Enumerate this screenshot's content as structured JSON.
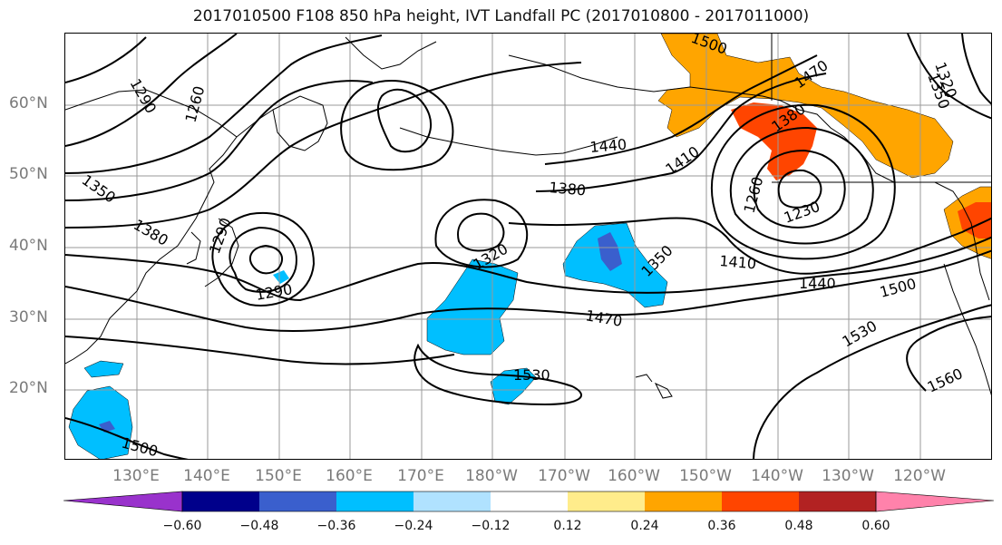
{
  "title": "2017010500 F108 850 hPa height, IVT Landfall PC (2017010800 - 2017011000)",
  "lat_labels": [
    "60°N",
    "50°N",
    "40°N",
    "30°N",
    "20°N"
  ],
  "lon_labels": [
    "130°E",
    "140°E",
    "150°E",
    "160°E",
    "170°E",
    "180°W",
    "170°W",
    "160°W",
    "150°W",
    "140°W",
    "130°W",
    "120°W"
  ],
  "contour_labels": [
    "1290",
    "1260",
    "1350",
    "1380",
    "1290",
    "1440",
    "1380",
    "1410",
    "1320",
    "1350",
    "1290",
    "1470",
    "1410",
    "1440",
    "1470",
    "1530",
    "1500",
    "1530",
    "1500",
    "1560",
    "1260",
    "1230",
    "1380",
    "1320",
    "1350",
    "1500"
  ],
  "colorbar": {
    "ticks": [
      "−0.60",
      "−0.48",
      "−0.36",
      "−0.24",
      "−0.12",
      "0.12",
      "0.24",
      "0.36",
      "0.48",
      "0.60"
    ],
    "colors": [
      "#9932cc",
      "#00008b",
      "#3a5fcd",
      "#00bfff",
      "#b0e2ff",
      "#ffffff",
      "#ffec8b",
      "#ffa500",
      "#ff4500",
      "#b22222",
      "#ff82ab"
    ]
  }
}
